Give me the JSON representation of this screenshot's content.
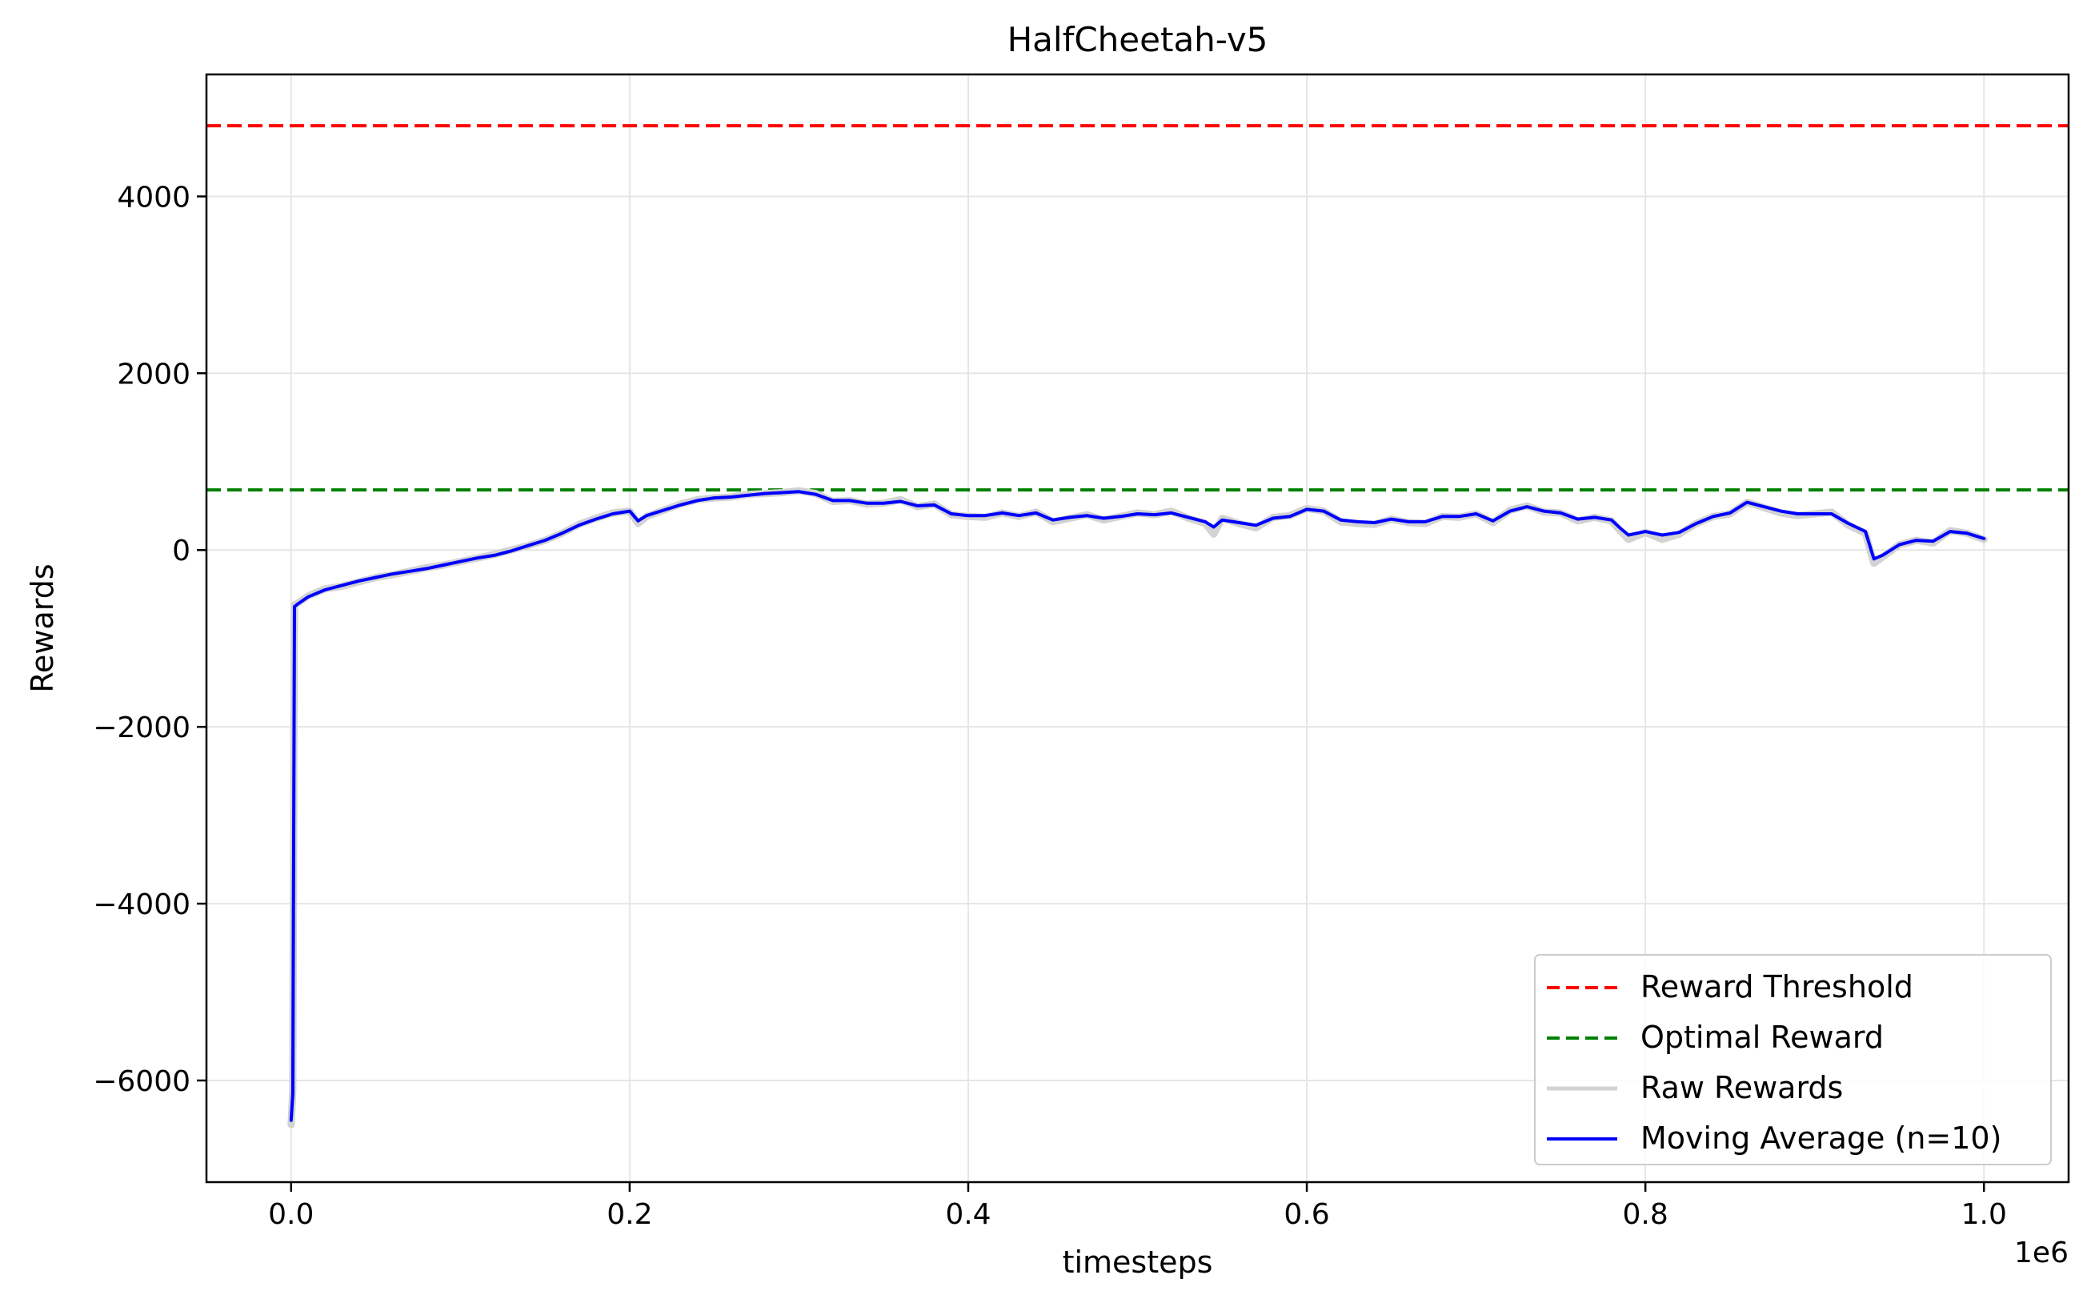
{
  "chart_data": {
    "type": "line",
    "title": "HalfCheetah-v5",
    "xlabel": "timesteps",
    "ylabel": "Rewards",
    "x_offset_label": "1e6",
    "xlim": [
      -50000,
      1050000
    ],
    "ylim": [
      -7150,
      5380
    ],
    "x_ticks": [
      0,
      200000,
      400000,
      600000,
      800000,
      1000000
    ],
    "x_tick_labels": [
      "0.0",
      "0.2",
      "0.4",
      "0.6",
      "0.8",
      "1.0"
    ],
    "y_ticks": [
      -6000,
      -4000,
      -2000,
      0,
      2000,
      4000
    ],
    "y_tick_labels": [
      "−6000",
      "−4000",
      "−2000",
      "0",
      "2000",
      "4000"
    ],
    "grid": true,
    "legend_position": "lower right",
    "colors": {
      "threshold": "#ff0000",
      "optimal": "#008000",
      "raw": "#d3d3d3",
      "moving_avg": "#0000ff",
      "grid": "#e6e6e6"
    },
    "hlines": [
      {
        "name": "Reward Threshold",
        "y": 4800,
        "style": "dashed",
        "color": "#ff0000"
      },
      {
        "name": "Optimal Reward",
        "y": 680,
        "style": "dashed",
        "color": "#008000"
      }
    ],
    "legend": [
      {
        "label": "Reward Threshold",
        "color": "#ff0000",
        "style": "dashed"
      },
      {
        "label": "Optimal Reward",
        "color": "#008000",
        "style": "dashed"
      },
      {
        "label": "Raw Rewards",
        "color": "#d3d3d3",
        "style": "solid"
      },
      {
        "label": "Moving Average (n=10)",
        "color": "#0000ff",
        "style": "solid"
      }
    ],
    "series": [
      {
        "name": "Raw Rewards",
        "color": "#d3d3d3",
        "x": [
          0,
          1000,
          2000,
          4000,
          10000,
          20000,
          30000,
          40000,
          50000,
          60000,
          70000,
          80000,
          90000,
          100000,
          110000,
          120000,
          130000,
          140000,
          150000,
          160000,
          170000,
          180000,
          190000,
          200000,
          205000,
          210000,
          220000,
          230000,
          240000,
          250000,
          260000,
          270000,
          280000,
          290000,
          300000,
          310000,
          320000,
          330000,
          340000,
          350000,
          360000,
          370000,
          380000,
          390000,
          400000,
          410000,
          420000,
          430000,
          440000,
          450000,
          460000,
          470000,
          480000,
          490000,
          500000,
          510000,
          520000,
          530000,
          540000,
          545000,
          550000,
          560000,
          570000,
          580000,
          590000,
          600000,
          610000,
          620000,
          630000,
          640000,
          650000,
          660000,
          670000,
          680000,
          690000,
          700000,
          710000,
          720000,
          730000,
          740000,
          750000,
          760000,
          770000,
          780000,
          785000,
          790000,
          800000,
          810000,
          820000,
          830000,
          840000,
          850000,
          860000,
          870000,
          880000,
          890000,
          900000,
          910000,
          920000,
          930000,
          935000,
          940000,
          950000,
          960000,
          970000,
          980000,
          990000,
          1000000
        ],
        "y": [
          -6500,
          -6100,
          -620,
          -600,
          -520,
          -440,
          -410,
          -360,
          -310,
          -280,
          -240,
          -200,
          -170,
          -130,
          -90,
          -50,
          0,
          50,
          110,
          190,
          290,
          360,
          420,
          440,
          300,
          380,
          450,
          520,
          570,
          590,
          600,
          630,
          640,
          650,
          670,
          640,
          550,
          560,
          520,
          530,
          570,
          490,
          520,
          400,
          380,
          370,
          420,
          380,
          430,
          320,
          360,
          400,
          340,
          380,
          420,
          400,
          440,
          360,
          300,
          180,
          360,
          300,
          250,
          370,
          390,
          470,
          440,
          320,
          300,
          290,
          350,
          310,
          300,
          380,
          370,
          410,
          310,
          450,
          500,
          430,
          420,
          330,
          370,
          330,
          220,
          120,
          200,
          120,
          180,
          300,
          380,
          410,
          540,
          480,
          420,
          390,
          410,
          430,
          280,
          190,
          -150,
          -80,
          60,
          110,
          80,
          220,
          190,
          120
        ]
      },
      {
        "name": "Moving Average (n=10)",
        "color": "#0000ff",
        "x": [
          0,
          1000,
          2000,
          4000,
          10000,
          20000,
          30000,
          40000,
          50000,
          60000,
          70000,
          80000,
          90000,
          100000,
          110000,
          120000,
          130000,
          140000,
          150000,
          160000,
          170000,
          180000,
          190000,
          200000,
          205000,
          210000,
          220000,
          230000,
          240000,
          250000,
          260000,
          270000,
          280000,
          290000,
          300000,
          310000,
          320000,
          330000,
          340000,
          350000,
          360000,
          370000,
          380000,
          390000,
          400000,
          410000,
          420000,
          430000,
          440000,
          450000,
          460000,
          470000,
          480000,
          490000,
          500000,
          510000,
          520000,
          530000,
          540000,
          545000,
          550000,
          560000,
          570000,
          580000,
          590000,
          600000,
          610000,
          620000,
          630000,
          640000,
          650000,
          660000,
          670000,
          680000,
          690000,
          700000,
          710000,
          720000,
          730000,
          740000,
          750000,
          760000,
          770000,
          780000,
          785000,
          790000,
          800000,
          810000,
          820000,
          830000,
          840000,
          850000,
          860000,
          870000,
          880000,
          890000,
          900000,
          910000,
          920000,
          930000,
          935000,
          940000,
          950000,
          960000,
          970000,
          980000,
          990000,
          1000000
        ],
        "y": [
          -6450,
          -6150,
          -640,
          -610,
          -530,
          -450,
          -400,
          -350,
          -310,
          -270,
          -240,
          -210,
          -170,
          -130,
          -90,
          -60,
          -10,
          50,
          110,
          190,
          280,
          350,
          410,
          440,
          330,
          390,
          450,
          510,
          560,
          590,
          600,
          620,
          640,
          650,
          660,
          630,
          560,
          560,
          530,
          530,
          550,
          500,
          510,
          410,
          390,
          390,
          420,
          390,
          420,
          340,
          370,
          390,
          360,
          380,
          410,
          400,
          420,
          370,
          320,
          260,
          340,
          310,
          280,
          360,
          380,
          460,
          440,
          340,
          320,
          310,
          350,
          320,
          320,
          380,
          380,
          410,
          330,
          440,
          490,
          440,
          420,
          350,
          370,
          340,
          250,
          170,
          210,
          170,
          200,
          300,
          380,
          420,
          540,
          490,
          440,
          410,
          410,
          410,
          300,
          210,
          -100,
          -60,
          60,
          110,
          100,
          210,
          190,
          130
        ]
      }
    ]
  }
}
